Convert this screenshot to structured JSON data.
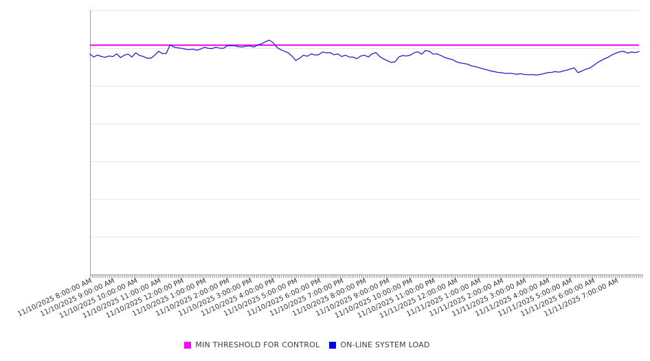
{
  "page": {
    "background_color": "#ffffff"
  },
  "chart_data": {
    "type": "line",
    "title": "",
    "xlabel": "",
    "ylabel": "",
    "x_axis": {
      "range_start": "11/10/2025 8:00:00 AM",
      "range_end": "11/11/2025 8:00:00 AM",
      "major_tick_interval": "1 hour",
      "minor_tick_interval_minutes": 5,
      "tick_labels": [
        "11/10/2025 8:00:00 AM",
        "11/10/2025 9:00:00 AM",
        "11/10/2025 10:00:00 AM",
        "11/10/2025 11:00:00 AM",
        "11/10/2025 12:00:00 PM",
        "11/10/2025 1:00:00 PM",
        "11/10/2025 2:00:00 PM",
        "11/10/2025 3:00:00 PM",
        "11/10/2025 4:00:00 PM",
        "11/10/2025 5:00:00 PM",
        "11/10/2025 6:00:00 PM",
        "11/10/2025 7:00:00 PM",
        "11/10/2025 8:00:00 PM",
        "11/10/2025 9:00:00 PM",
        "11/10/2025 10:00:00 PM",
        "11/10/2025 11:00:00 PM",
        "11/11/2025 12:00:00 AM",
        "11/11/2025 1:00:00 AM",
        "11/11/2025 2:00:00 AM",
        "11/11/2025 3:00:00 AM",
        "11/11/2025 4:00:00 AM",
        "11/11/2025 5:00:00 AM",
        "11/11/2025 6:00:00 AM",
        "11/11/2025 7:00:00 AM"
      ]
    },
    "y_axis": {
      "labels_visible": false,
      "ylim": [
        0,
        100
      ],
      "gridline_divisions": 7,
      "grid": "horizontal"
    },
    "series": [
      {
        "name": "MIN THRESHOLD FOR CONTROL",
        "type": "constant-line",
        "color": "#ee00ee",
        "value": 86.8
      },
      {
        "name": "ON-LINE SYSTEM LOAD",
        "type": "line",
        "color": "#1f1fcc",
        "sample_interval_minutes": 10,
        "start_time": "11/10/2025 8:00:00 AM",
        "values": [
          83.4,
          82.3,
          83.1,
          82.5,
          82.2,
          82.7,
          82.5,
          83.5,
          82.1,
          83.0,
          83.4,
          82.3,
          83.9,
          82.9,
          82.5,
          81.9,
          81.9,
          83.0,
          84.5,
          83.6,
          83.7,
          86.9,
          86.1,
          85.8,
          85.6,
          85.3,
          85.1,
          85.3,
          84.9,
          85.3,
          86.0,
          85.6,
          85.5,
          86.0,
          85.7,
          85.6,
          86.6,
          86.6,
          86.6,
          86.2,
          86.1,
          86.5,
          86.5,
          86.1,
          86.9,
          87.3,
          88.1,
          88.7,
          87.8,
          86.0,
          85.1,
          84.5,
          83.9,
          82.6,
          81.0,
          81.9,
          83.0,
          82.6,
          83.5,
          83.1,
          83.2,
          84.2,
          83.9,
          84.0,
          83.2,
          83.5,
          82.5,
          83.0,
          82.3,
          82.3,
          81.7,
          82.7,
          83.0,
          82.3,
          83.5,
          84.0,
          82.5,
          81.6,
          80.9,
          80.3,
          80.5,
          82.3,
          82.9,
          82.7,
          83.0,
          83.9,
          84.3,
          83.4,
          84.8,
          84.5,
          83.4,
          83.5,
          82.9,
          82.2,
          81.7,
          81.4,
          80.6,
          80.1,
          79.9,
          79.6,
          79.0,
          78.7,
          78.3,
          77.9,
          77.5,
          77.1,
          76.8,
          76.5,
          76.4,
          76.1,
          76.2,
          76.0,
          75.8,
          76.0,
          75.7,
          75.6,
          75.7,
          75.5,
          75.7,
          76.0,
          76.4,
          76.5,
          76.8,
          76.6,
          77.0,
          77.3,
          77.8,
          78.2,
          76.4,
          77.0,
          77.7,
          78.1,
          79.0,
          80.1,
          80.9,
          81.7,
          82.3,
          83.2,
          83.8,
          84.3,
          84.5,
          83.8,
          84.2,
          84.0,
          84.4
        ]
      }
    ],
    "legend": {
      "position": "bottom-center",
      "items": [
        "MIN THRESHOLD FOR CONTROL",
        "ON-LINE SYSTEM LOAD"
      ]
    },
    "style": {
      "gridline_color": "#e7e7e7",
      "axis_color": "#9a9a9a",
      "tick_label_color": "#333333",
      "legend_text_color": "#3c3c3c"
    }
  }
}
